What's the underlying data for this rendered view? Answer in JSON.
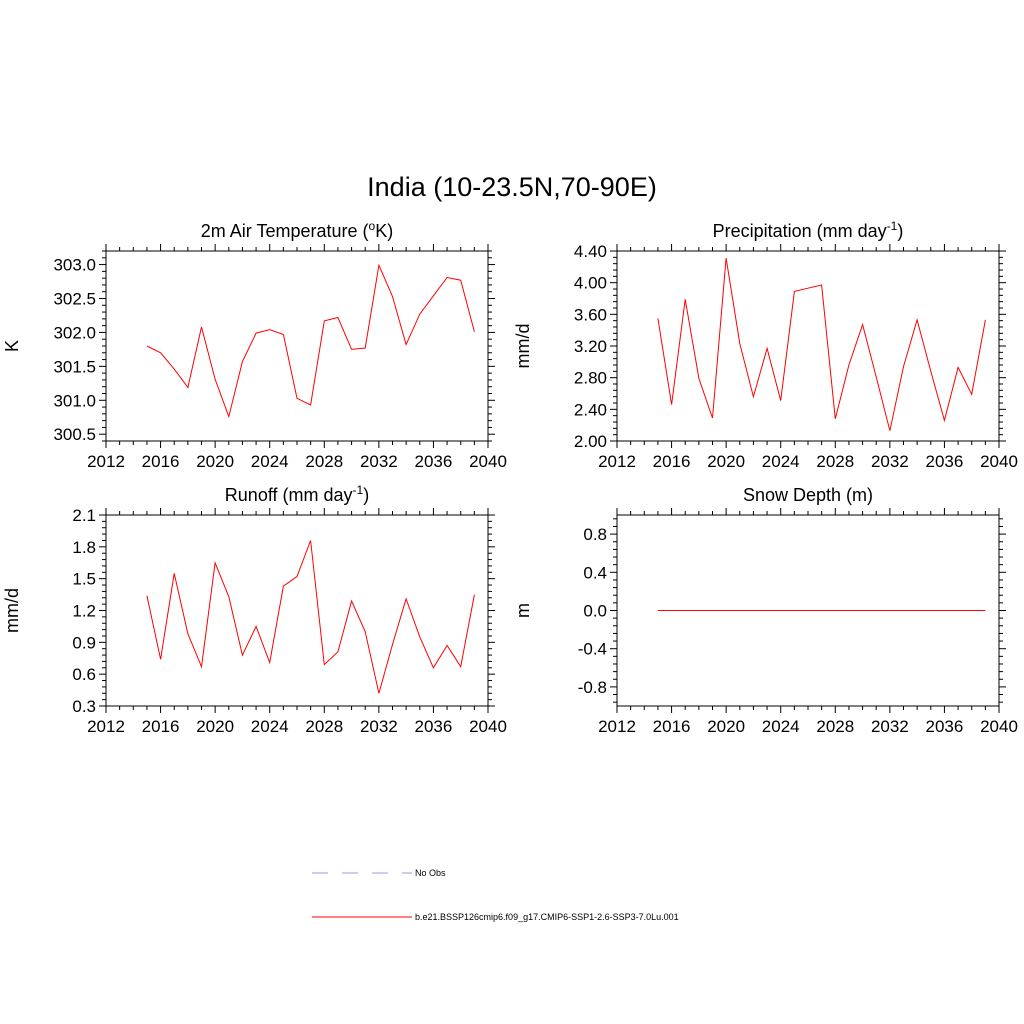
{
  "title": "India (10-23.5N,70-90E)",
  "colors": {
    "series": "#ff0000",
    "no_obs": "#9999ee",
    "axes": "#000000"
  },
  "legend": [
    {
      "label": "No Obs",
      "style": "dashed",
      "color": "#9999ee"
    },
    {
      "label": "b.e21.BSSP126cmip6.f09_g17.CMIP6-SSP1-2.6-SSP3-7.0Lu.001",
      "style": "solid",
      "color": "#ff0000"
    }
  ],
  "chart_data": [
    {
      "type": "line",
      "title": "2m Air Temperature (",
      "title_sup": "o",
      "title_suffix": "K)",
      "title_text": "2m Air Temperature (oK)",
      "ylabel": "K",
      "xlim": [
        2012,
        2040
      ],
      "ylim": [
        300.4,
        303.2
      ],
      "x_ticks": [
        "2012",
        "2016",
        "2020",
        "2024",
        "2028",
        "2032",
        "2036",
        "2040"
      ],
      "y_ticks": [
        "300.5",
        "301.0",
        "301.5",
        "302.0",
        "302.5",
        "303.0"
      ],
      "x": [
        2015,
        2016,
        2017,
        2018,
        2019,
        2020,
        2021,
        2022,
        2023,
        2024,
        2025,
        2026,
        2027,
        2028,
        2029,
        2030,
        2031,
        2032,
        2033,
        2034,
        2035,
        2036,
        2037,
        2038,
        2039
      ],
      "series": [
        {
          "values": [
            301.8,
            301.7,
            301.46,
            301.19,
            302.08,
            301.31,
            300.76,
            301.57,
            301.99,
            302.04,
            301.97,
            301.03,
            300.93,
            302.17,
            302.22,
            301.75,
            301.77,
            302.99,
            302.53,
            301.82,
            302.27,
            302.54,
            302.81,
            302.77,
            302.01
          ]
        }
      ]
    },
    {
      "type": "line",
      "title": "Precipitation (mm day",
      "title_sup": "-1",
      "title_suffix": ")",
      "title_text": "Precipitation (mm day-1)",
      "ylabel": "mm/d",
      "xlim": [
        2012,
        2040
      ],
      "ylim": [
        2.0,
        4.4
      ],
      "x_ticks": [
        "2012",
        "2016",
        "2020",
        "2024",
        "2028",
        "2032",
        "2036",
        "2040"
      ],
      "y_ticks": [
        "2.00",
        "2.40",
        "2.80",
        "3.20",
        "3.60",
        "4.00",
        "4.40"
      ],
      "x": [
        2015,
        2016,
        2017,
        2018,
        2019,
        2020,
        2021,
        2022,
        2023,
        2024,
        2025,
        2026,
        2027,
        2028,
        2029,
        2030,
        2031,
        2032,
        2033,
        2034,
        2035,
        2036,
        2037,
        2038,
        2039
      ],
      "series": [
        {
          "values": [
            3.55,
            2.46,
            3.79,
            2.79,
            2.29,
            4.31,
            3.23,
            2.56,
            3.17,
            2.51,
            3.89,
            3.93,
            3.97,
            2.28,
            2.96,
            3.47,
            2.81,
            2.13,
            2.94,
            3.53,
            2.88,
            2.26,
            2.93,
            2.59,
            3.53
          ]
        }
      ]
    },
    {
      "type": "line",
      "title": "Runoff (mm day",
      "title_sup": "-1",
      "title_suffix": ")",
      "title_text": "Runoff (mm day-1)",
      "ylabel": "mm/d",
      "xlim": [
        2012,
        2040
      ],
      "ylim": [
        0.3,
        2.1
      ],
      "x_ticks": [
        "2012",
        "2016",
        "2020",
        "2024",
        "2028",
        "2032",
        "2036",
        "2040"
      ],
      "y_ticks": [
        "0.3",
        "0.6",
        "0.9",
        "1.2",
        "1.5",
        "1.8",
        "2.1"
      ],
      "x": [
        2015,
        2016,
        2017,
        2018,
        2019,
        2020,
        2021,
        2022,
        2023,
        2024,
        2025,
        2026,
        2027,
        2028,
        2029,
        2030,
        2031,
        2032,
        2033,
        2034,
        2035,
        2036,
        2037,
        2038,
        2039
      ],
      "series": [
        {
          "values": [
            1.34,
            0.74,
            1.55,
            0.98,
            0.67,
            1.65,
            1.33,
            0.78,
            1.05,
            0.71,
            1.43,
            1.52,
            1.86,
            0.69,
            0.81,
            1.29,
            1.0,
            0.42,
            0.88,
            1.31,
            0.95,
            0.66,
            0.87,
            0.67,
            1.35
          ]
        }
      ]
    },
    {
      "type": "line",
      "title": "Snow Depth (m)",
      "title_sup": "",
      "title_suffix": "",
      "title_text": "Snow Depth (m)",
      "ylabel": "m",
      "xlim": [
        2012,
        2040
      ],
      "ylim": [
        -1.0,
        1.0
      ],
      "x_ticks": [
        "2012",
        "2016",
        "2020",
        "2024",
        "2028",
        "2032",
        "2036",
        "2040"
      ],
      "y_ticks": [
        "-0.8",
        "-0.4",
        "0.0",
        "0.4",
        "0.8"
      ],
      "x": [
        2015,
        2016,
        2017,
        2018,
        2019,
        2020,
        2021,
        2022,
        2023,
        2024,
        2025,
        2026,
        2027,
        2028,
        2029,
        2030,
        2031,
        2032,
        2033,
        2034,
        2035,
        2036,
        2037,
        2038,
        2039
      ],
      "series": [
        {
          "values": [
            0,
            0,
            0,
            0,
            0,
            0,
            0,
            0,
            0,
            0,
            0,
            0,
            0,
            0,
            0,
            0,
            0,
            0,
            0,
            0,
            0,
            0,
            0,
            0,
            0
          ]
        }
      ]
    }
  ]
}
